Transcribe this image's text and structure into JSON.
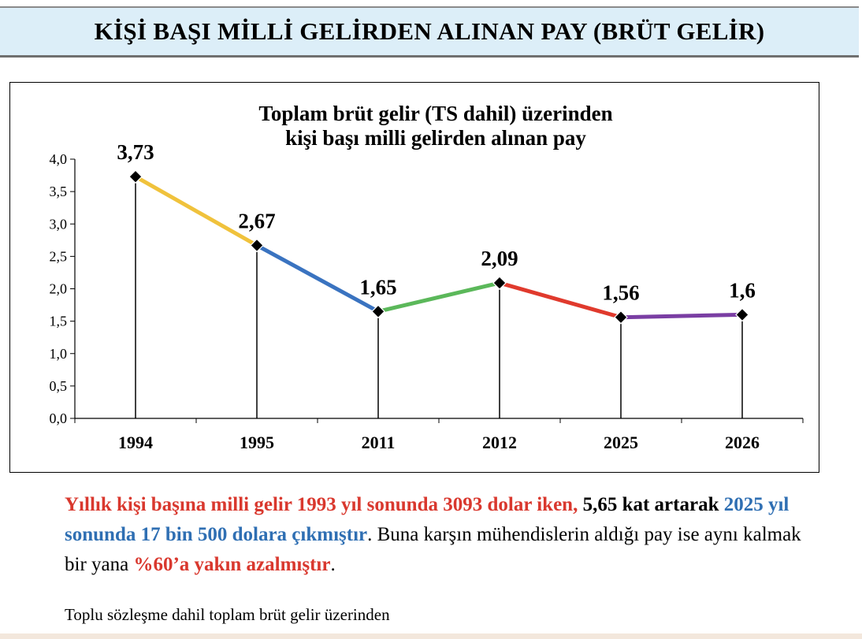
{
  "header": {
    "title": "KİŞİ BAŞI MİLLİ GELİRDEN ALINAN PAY (BRÜT GELİR)"
  },
  "chart_data": {
    "type": "line",
    "title_lines": [
      "Toplam brüt gelir (TS dahil) üzerinden",
      "kişi başı milli gelirden alınan pay"
    ],
    "categories": [
      "1994",
      "1995",
      "2011",
      "2012",
      "2025",
      "2026"
    ],
    "values": [
      3.73,
      2.67,
      1.65,
      2.09,
      1.56,
      1.6
    ],
    "value_labels": [
      "3,73",
      "2,67",
      "1,65",
      "2,09",
      "1,56",
      "1,6"
    ],
    "y_ticks": [
      "0,0",
      "0,5",
      "1,0",
      "1,5",
      "2,0",
      "2,5",
      "3,0",
      "3,5",
      "4,0"
    ],
    "ylim": [
      0,
      4
    ],
    "ytick_step": 0.5,
    "segment_colors": [
      "#f0c23c",
      "#3a73c0",
      "#5bb85a",
      "#e03a2d",
      "#7a3ea3"
    ],
    "marker": "diamond",
    "drop_lines": true,
    "grid": false,
    "legend": "none"
  },
  "text": {
    "p1_red": "Yıllık kişi başına milli gelir 1993 yıl sonunda 3093 dolar iken,",
    "p1_bold": " 5,65 kat artarak",
    "p1_blue": " 2025 yıl sonunda 17 bin 500 dolara çıkmıştır",
    "p1_plain": ". Buna karşın mühendislerin aldığı pay ise aynı kalmak bir yana ",
    "p1_red2": "%60’a yakın azalmıştır",
    "p1_end": ".",
    "footnote": "Toplu sözleşme dahil toplam brüt gelir üzerinden"
  }
}
